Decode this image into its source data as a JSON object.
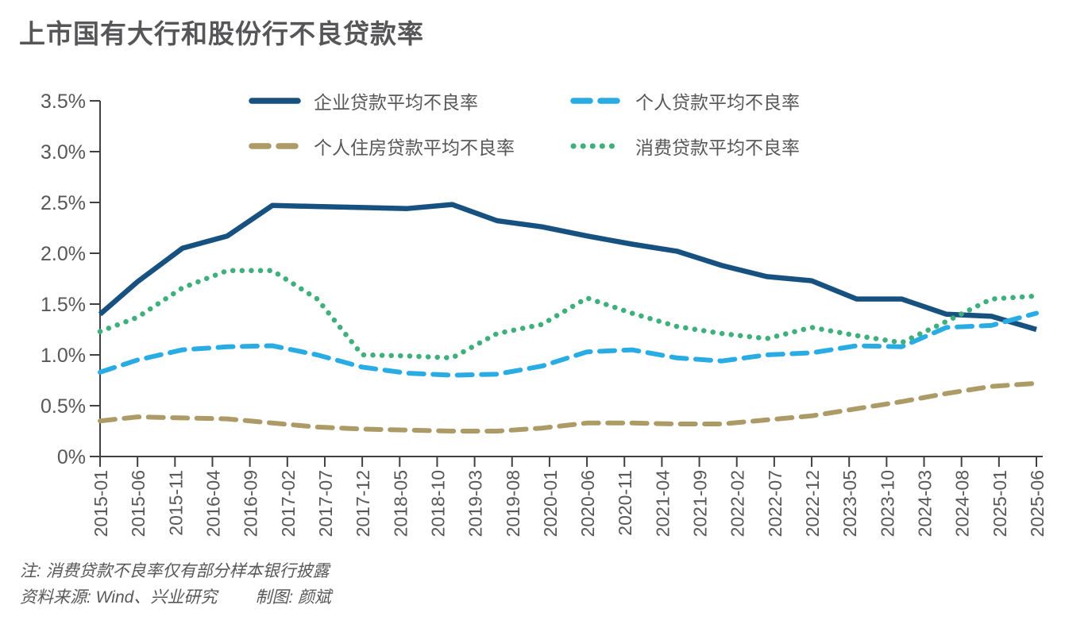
{
  "title": "上市国有大行和股份行不良贷款率",
  "notes": {
    "note": "注: 消费贷款不良率仅有部分样本银行披露",
    "source": "资料来源: Wind、兴业研究",
    "credit": "制图: 颜斌"
  },
  "palette": {
    "title_text": "#565658",
    "label_text": "#595757",
    "axis": "#404040",
    "corporate": "#175180",
    "personal": "#29ace3",
    "housing": "#ac9b66",
    "consumer": "#3fb07c"
  },
  "chart_data": {
    "type": "line",
    "title": "上市国有大行和股份行不良贷款率",
    "xlabel": "",
    "ylabel": "",
    "ylim": [
      0,
      3.5
    ],
    "grid": false,
    "legend_position": "top",
    "ytick_labels": [
      "3.5%",
      "3.0%",
      "2.5%",
      "2.0%",
      "1.5%",
      "1.0%",
      "0.5%",
      "0%"
    ],
    "xtick_labels": [
      "2015-01",
      "2015-06",
      "2015-11",
      "2016-04",
      "2016-09",
      "2017-02",
      "2017-07",
      "2017-12",
      "2018-05",
      "2018-10",
      "2019-03",
      "2019-08",
      "2020-01",
      "2020-06",
      "2020-11",
      "2021-04",
      "2021-09",
      "2022-02",
      "2022-07",
      "2022-12",
      "2023-05",
      "2023-10",
      "2024-03",
      "2024-08",
      "2025-01",
      "2025-06"
    ],
    "x": [
      "2015-01",
      "2015-06",
      "2015-12",
      "2016-06",
      "2016-12",
      "2017-06",
      "2017-12",
      "2018-06",
      "2018-12",
      "2019-06",
      "2019-12",
      "2020-06",
      "2020-12",
      "2021-06",
      "2021-12",
      "2022-06",
      "2022-12",
      "2023-06",
      "2023-12",
      "2024-06",
      "2024-12",
      "2025-06"
    ],
    "series": [
      {
        "key": "corporate-loan-npl",
        "name": "企业贷款平均不良率",
        "style": "solid",
        "color": "#175180",
        "values": [
          1.4,
          1.72,
          2.05,
          2.17,
          2.47,
          2.46,
          2.45,
          2.44,
          2.48,
          2.32,
          2.26,
          2.17,
          2.09,
          2.02,
          1.88,
          1.77,
          1.73,
          1.55,
          1.55,
          1.4,
          1.38,
          1.25
        ]
      },
      {
        "key": "personal-loan-npl",
        "name": "个人贷款平均不良率",
        "style": "dashed",
        "color": "#29ace3",
        "values": [
          0.83,
          0.95,
          1.05,
          1.08,
          1.09,
          1.0,
          0.88,
          0.82,
          0.8,
          0.81,
          0.89,
          1.03,
          1.05,
          0.97,
          0.94,
          1.0,
          1.02,
          1.09,
          1.08,
          1.27,
          1.29,
          1.41
        ]
      },
      {
        "key": "personal-housing-loan-npl",
        "name": "个人住房贷款平均不良率",
        "style": "dashed",
        "color": "#ac9b66",
        "values": [
          0.35,
          0.39,
          0.38,
          0.37,
          0.33,
          0.29,
          0.27,
          0.26,
          0.25,
          0.25,
          0.28,
          0.33,
          0.33,
          0.32,
          0.32,
          0.36,
          0.4,
          0.47,
          0.54,
          0.62,
          0.69,
          0.72
        ]
      },
      {
        "key": "consumer-loan-npl",
        "name": "消费贷款平均不良率",
        "style": "dotted",
        "color": "#3fb07c",
        "values": [
          1.23,
          1.37,
          1.66,
          1.83,
          1.83,
          1.55,
          1.0,
          0.99,
          0.97,
          1.21,
          1.3,
          1.56,
          1.41,
          1.28,
          1.21,
          1.16,
          1.27,
          1.19,
          1.12,
          1.33,
          1.55,
          1.58
        ]
      }
    ]
  }
}
